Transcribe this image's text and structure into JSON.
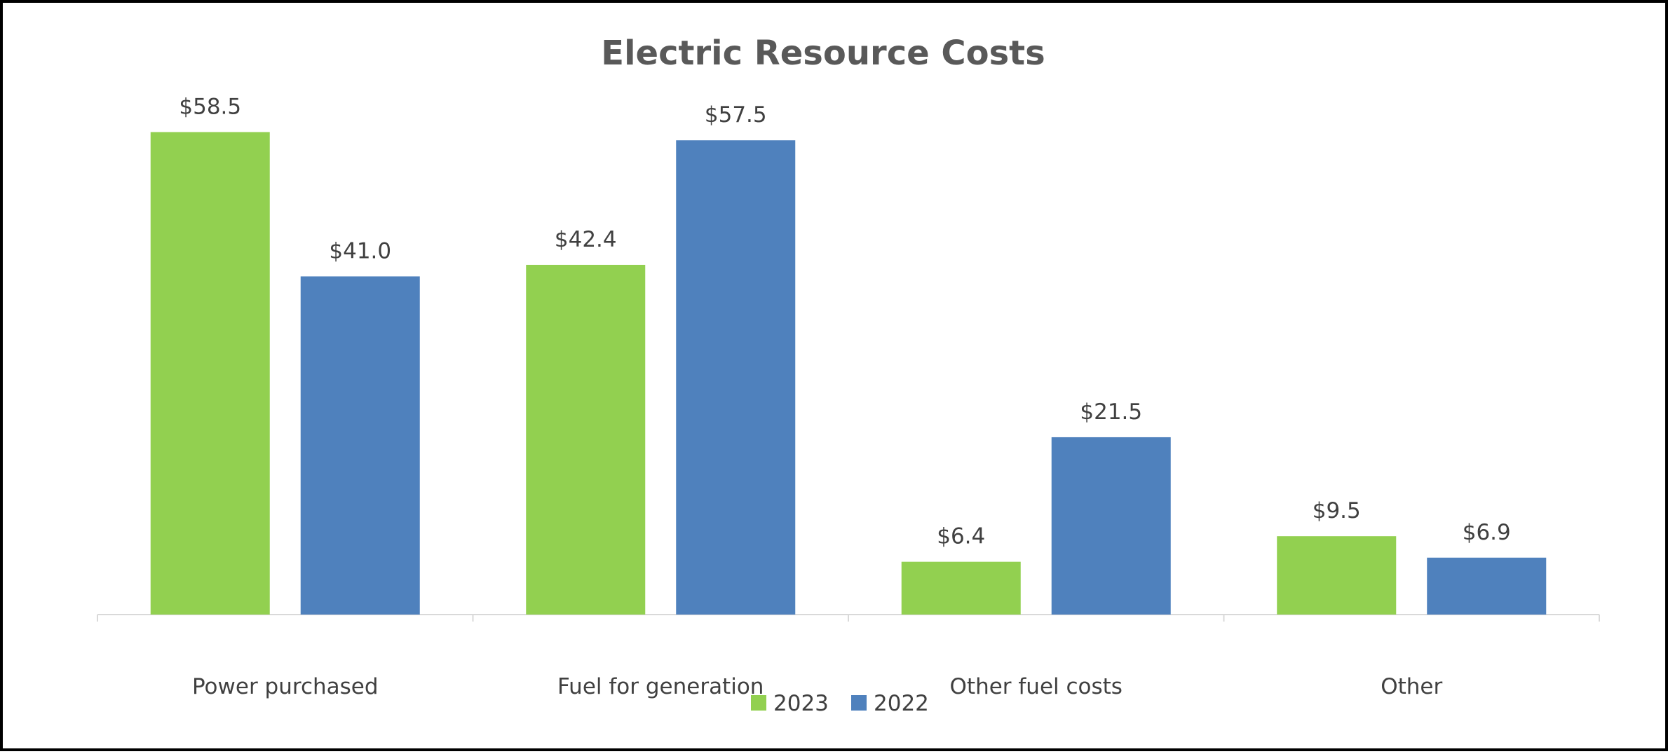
{
  "chart_data": {
    "type": "bar",
    "title": "Electric Resource Costs",
    "xlabel": "",
    "ylabel": "",
    "categories": [
      "Power purchased",
      "Fuel for generation",
      "Other fuel costs",
      "Other"
    ],
    "series": [
      {
        "name": "2023",
        "color": "#92d050",
        "values": [
          58.5,
          42.4,
          6.4,
          9.5
        ],
        "labels": [
          "$58.5",
          "$42.4",
          "$6.4",
          "$9.5"
        ]
      },
      {
        "name": "2022",
        "color": "#4f81bd",
        "values": [
          41.0,
          57.5,
          21.5,
          6.9
        ],
        "labels": [
          "$41.0",
          "$57.5",
          "$21.5",
          "$6.9"
        ]
      }
    ],
    "ylim": [
      0,
      60
    ],
    "grid": false,
    "legend_position": "bottom"
  }
}
